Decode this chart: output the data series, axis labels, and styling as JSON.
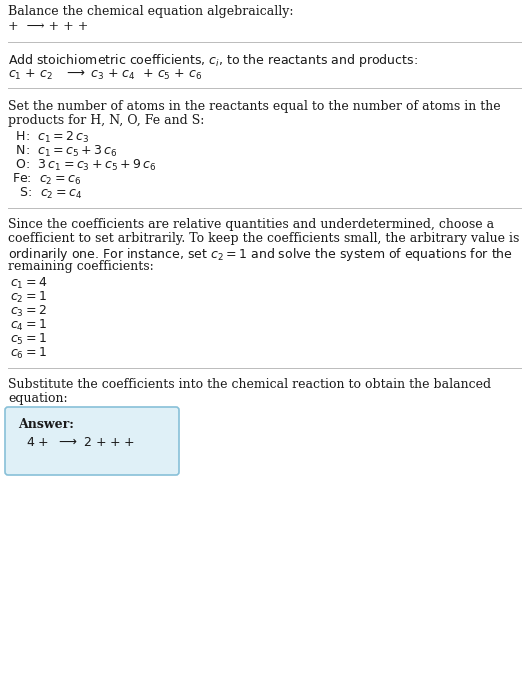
{
  "bg_color": "#ffffff",
  "text_color": "#1a1a1a",
  "title": "Balance the chemical equation algebraically:",
  "line1": "+  ⟶ + + +",
  "section2_header": "Add stoichiometric coefficients, $c_i$, to the reactants and products:",
  "section2_eq": "$c_1$ + $c_2$   $\\longrightarrow$ $c_3$ + $c_4$  + $c_5$ + $c_6$",
  "section3_header_l1": "Set the number of atoms in the reactants equal to the number of atoms in the",
  "section3_header_l2": "products for H, N, O, Fe and S:",
  "section3_lines": [
    " H:  $c_1 = 2\\,c_3$",
    " N:  $c_1 = c_5 + 3\\,c_6$",
    " O:  $3\\,c_1 = c_3 + c_5 + 9\\,c_6$",
    "Fe:  $c_2 = c_6$",
    "  S:  $c_2 = c_4$"
  ],
  "section4_header_l1": "Since the coefficients are relative quantities and underdetermined, choose a",
  "section4_header_l2": "coefficient to set arbitrarily. To keep the coefficients small, the arbitrary value is",
  "section4_header_l3": "ordinarily one. For instance, set $c_2 = 1$ and solve the system of equations for the",
  "section4_header_l4": "remaining coefficients:",
  "section4_lines": [
    "$c_1 = 4$",
    "$c_2 = 1$",
    "$c_3 = 2$",
    "$c_4 = 1$",
    "$c_5 = 1$",
    "$c_6 = 1$"
  ],
  "section5_l1": "Substitute the coefficients into the chemical reaction to obtain the balanced",
  "section5_l2": "equation:",
  "answer_label": "Answer:",
  "answer_eq": "4 +  ⟶ 2 + + + ",
  "answer_box_facecolor": "#dff0f7",
  "answer_box_edgecolor": "#88c0d8",
  "separator_color": "#bbbbbb",
  "fs_body": 9.0,
  "fs_math": 9.0
}
